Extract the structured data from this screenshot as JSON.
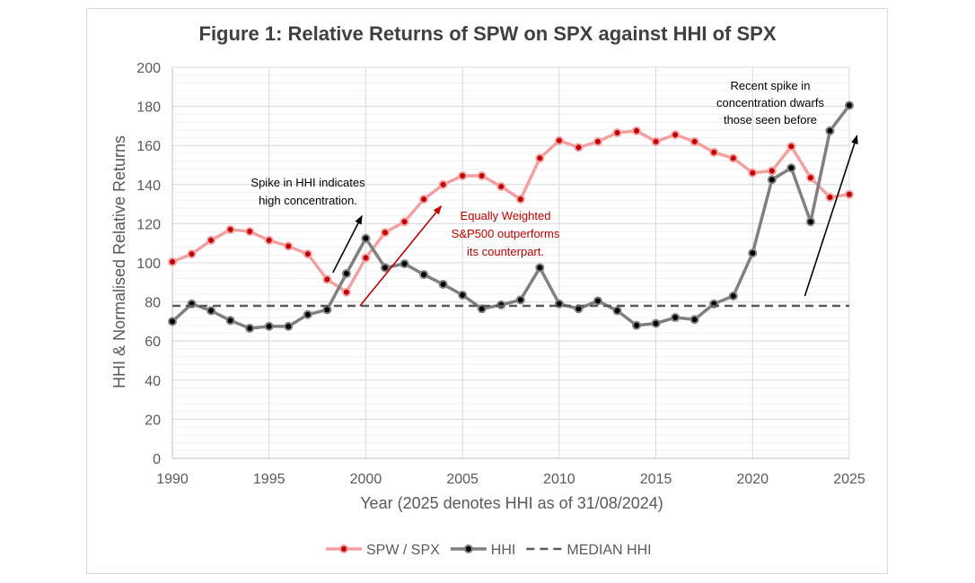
{
  "chart_data": {
    "type": "line",
    "title": "Figure 1: Relative Returns of SPW on SPX against HHI of SPX",
    "xlabel": "Year (2025 denotes HHI as of 31/08/2024)",
    "ylabel": "HHI & Normalised Relative Returns",
    "xlim": [
      1990,
      2025
    ],
    "ylim": [
      0,
      200
    ],
    "x_ticks": [
      1990,
      1995,
      2000,
      2005,
      2010,
      2015,
      2020,
      2025
    ],
    "y_ticks": [
      0,
      20,
      40,
      60,
      80,
      100,
      120,
      140,
      160,
      180,
      200
    ],
    "grid": "horizontal major and minor",
    "legend_position": "bottom",
    "x": [
      1990,
      1991,
      1992,
      1993,
      1994,
      1995,
      1996,
      1997,
      1998,
      1999,
      2000,
      2001,
      2002,
      2003,
      2004,
      2005,
      2006,
      2007,
      2008,
      2009,
      2010,
      2011,
      2012,
      2013,
      2014,
      2015,
      2016,
      2017,
      2018,
      2019,
      2020,
      2021,
      2022,
      2023,
      2024,
      2025
    ],
    "series": [
      {
        "name": "SPW / SPX",
        "color": "#f4a0a0",
        "marker_color": "#c00000",
        "values": [
          100.5,
          104.5,
          111.5,
          117,
          116,
          111.5,
          108.5,
          104.5,
          91.5,
          85,
          102.5,
          115.5,
          121,
          132.5,
          140,
          144.5,
          144.5,
          139,
          132.5,
          153.5,
          162.5,
          159,
          162,
          166.5,
          167.5,
          162,
          165.5,
          162,
          156.5,
          153.5,
          146,
          147,
          159.5,
          143.5,
          133.5,
          135
        ]
      },
      {
        "name": "HHI",
        "color": "#808080",
        "marker_color": "#000000",
        "values": [
          70,
          79,
          75.5,
          70.5,
          66.5,
          67.5,
          67.5,
          73.5,
          76,
          94.5,
          112.5,
          97.5,
          99.5,
          94,
          89,
          83.5,
          76.5,
          78.5,
          81,
          97.5,
          79,
          76.5,
          80.5,
          75.5,
          68,
          69,
          72,
          71,
          79,
          83,
          105,
          142.5,
          148.5,
          121,
          167.5,
          180.5
        ]
      },
      {
        "name": "MEDIAN HHI",
        "color": "#595959",
        "style": "dashed",
        "values": [
          78,
          78,
          78,
          78,
          78,
          78,
          78,
          78,
          78,
          78,
          78,
          78,
          78,
          78,
          78,
          78,
          78,
          78,
          78,
          78,
          78,
          78,
          78,
          78,
          78,
          78,
          78,
          78,
          78,
          78,
          78,
          78,
          78,
          78,
          78,
          78
        ]
      }
    ],
    "annotations": [
      {
        "lines": [
          "Spike in HHI indicates",
          "high concentration."
        ],
        "color": "#000000"
      },
      {
        "lines": [
          "Equally Weighted",
          "S&P500 outperforms",
          "its counterpart."
        ],
        "color": "#c00000"
      },
      {
        "lines": [
          "Recent spike in",
          "concentration dwarfs",
          "those seen before"
        ],
        "color": "#000000"
      }
    ],
    "arrows": [
      {
        "from": [
          1998.3,
          95
        ],
        "to": [
          1999.8,
          124
        ],
        "color": "#000000"
      },
      {
        "from": [
          1999.7,
          78
        ],
        "to": [
          2003.9,
          129
        ],
        "color": "#c00000"
      },
      {
        "from": [
          2022.7,
          83
        ],
        "to": [
          2025.4,
          165
        ],
        "color": "#000000"
      }
    ]
  }
}
